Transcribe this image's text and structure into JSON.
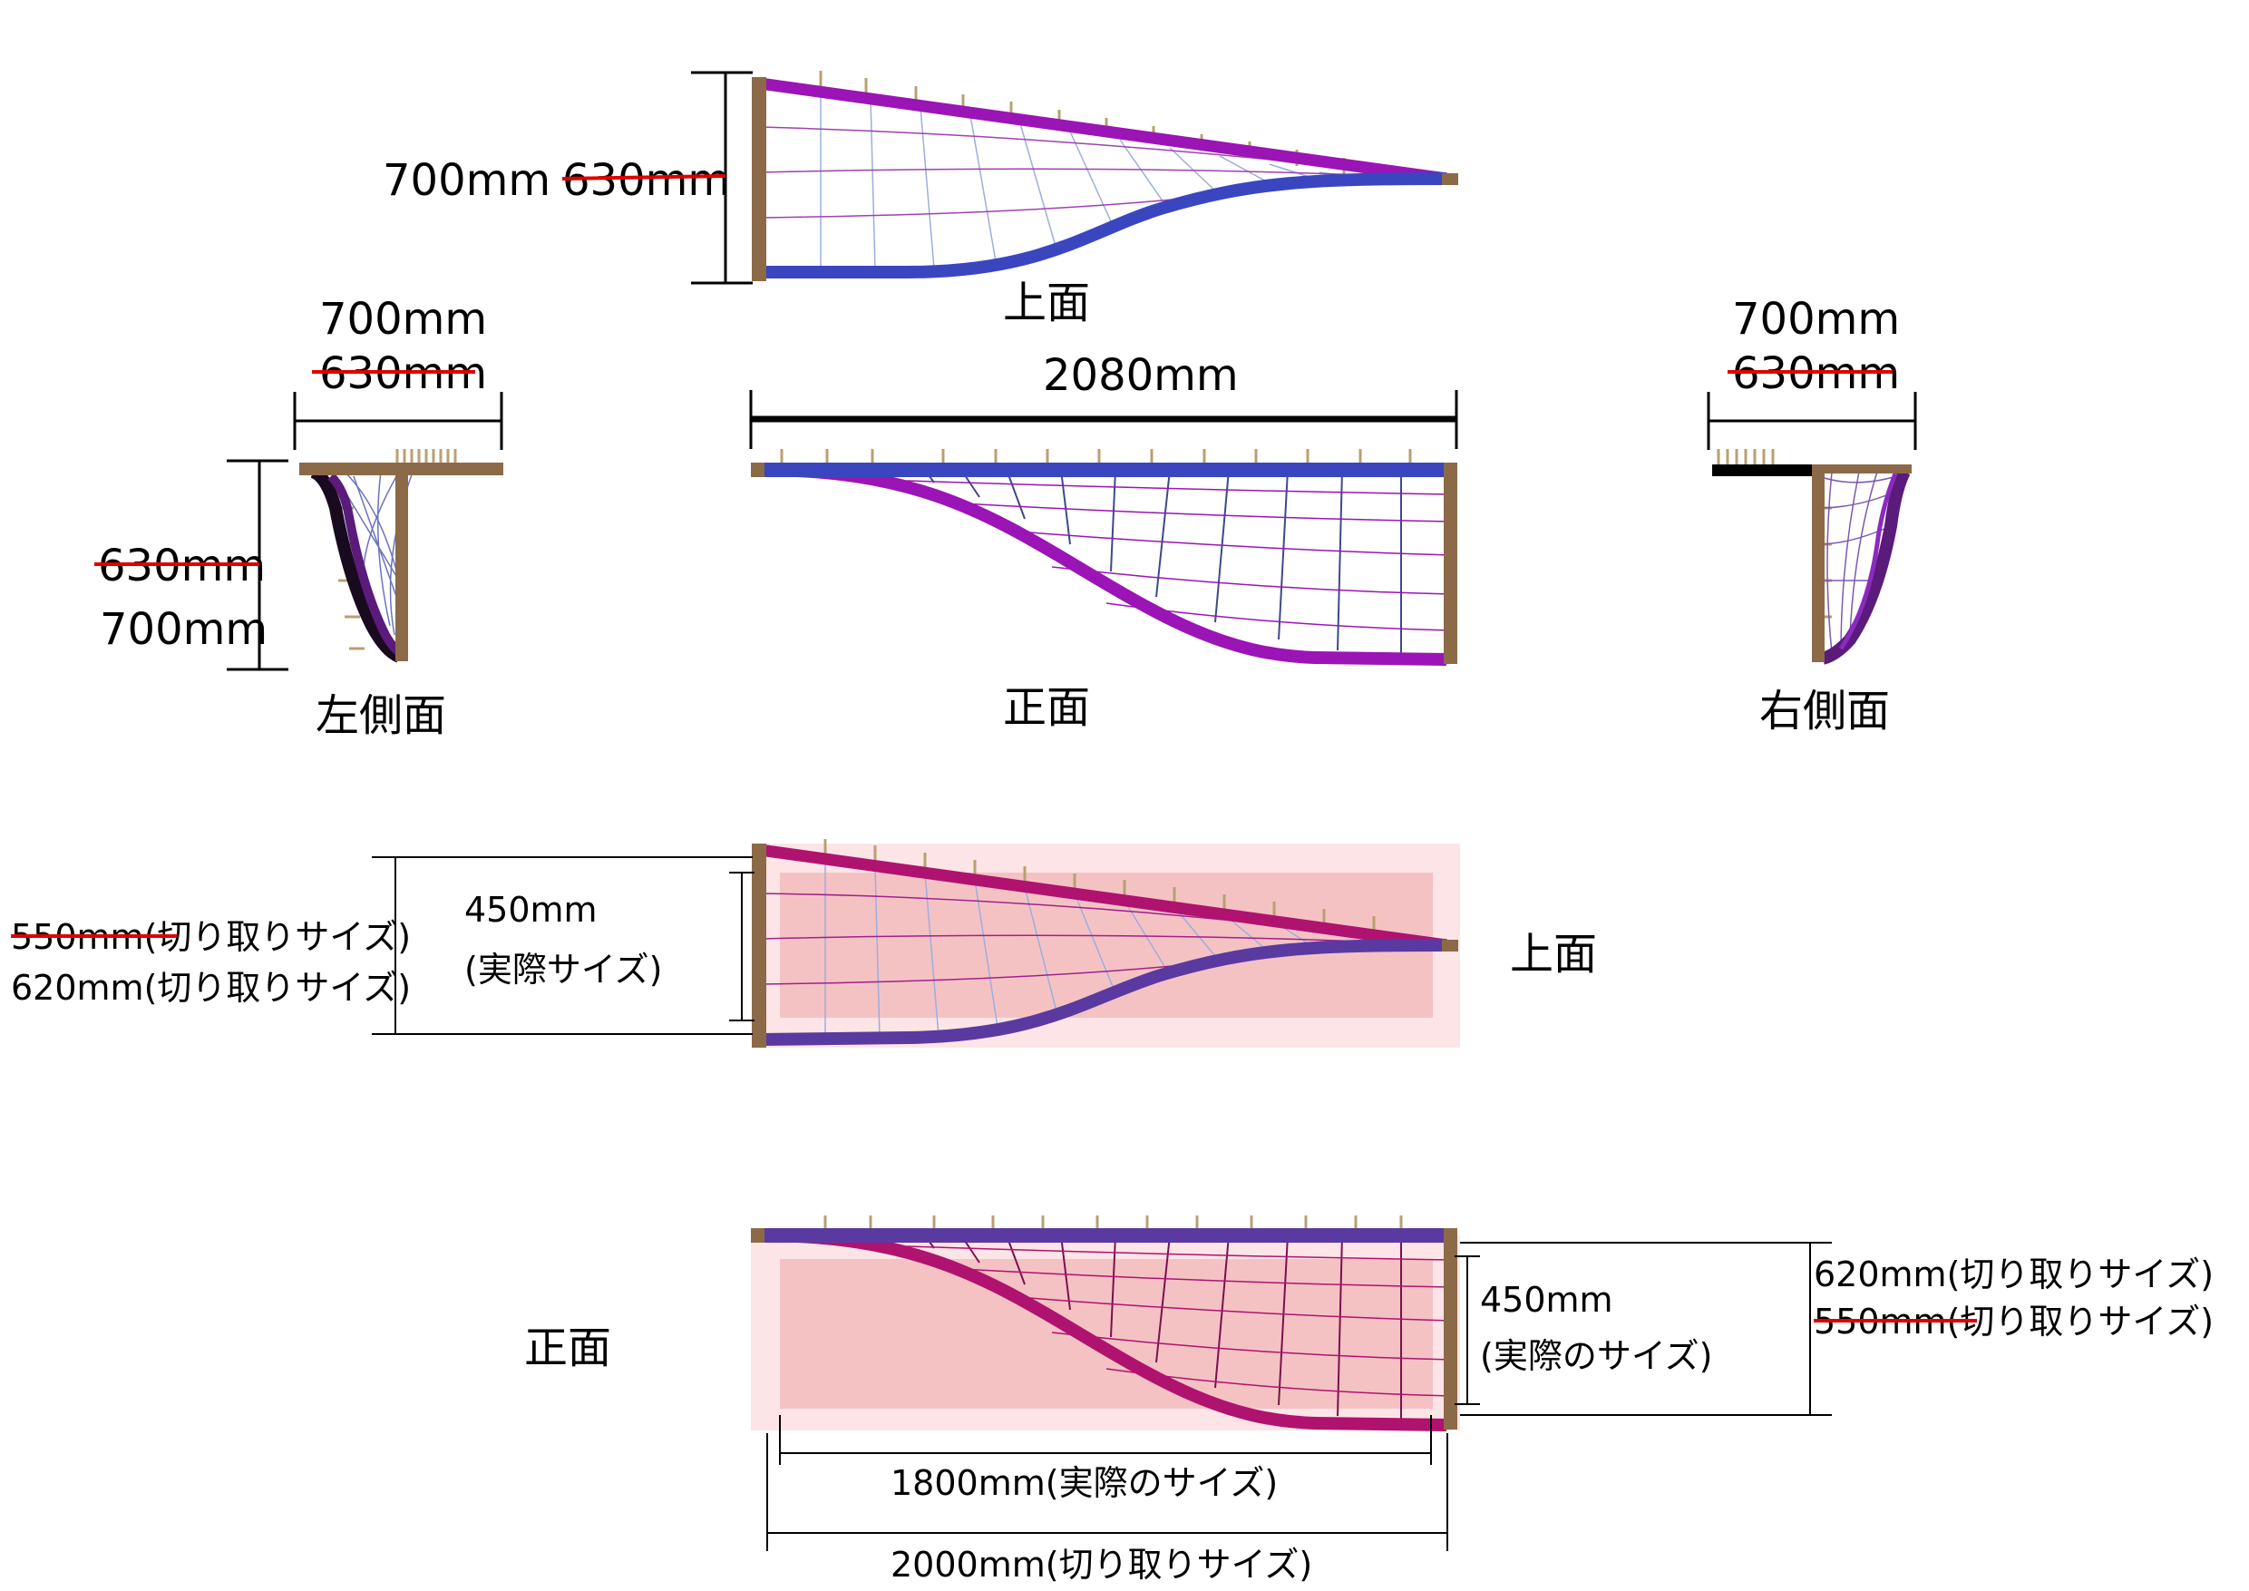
{
  "top_view": {
    "title": "上面",
    "height_new": "700mm",
    "height_old": "630mm"
  },
  "front_view": {
    "title": "正面",
    "width": "2080mm"
  },
  "left_view": {
    "title": "左側面",
    "width_new": "700mm",
    "width_old": "630mm",
    "height_old": "630mm",
    "height_new": "700mm"
  },
  "right_view": {
    "title": "右側面",
    "width_new": "700mm",
    "width_old": "630mm"
  },
  "cut_top": {
    "title": "上面",
    "cut_old": "550mm(切り取りサイズ)",
    "cut_new": "620mm(切り取りサイズ)",
    "actual": "450mm",
    "actual_note": "(実際サイズ)"
  },
  "cut_front": {
    "title": "正面",
    "actual_h": "450mm",
    "actual_h_note": "(実際のサイズ)",
    "cut_new": "620mm(切り取りサイズ)",
    "cut_old": "550mm(切り取りサイズ)",
    "actual_w": "1800mm(実際のサイズ)",
    "cut_w": "2000mm(切り取りサイズ)"
  },
  "colors": {
    "frame": "#8c6a48",
    "purple": "#9b14b5",
    "blue": "#3a46c0",
    "magenta": "#b0126f",
    "strike": "#e00000",
    "cut_outer": "#fde4e6",
    "cut_inner": "#f5c2c4"
  }
}
